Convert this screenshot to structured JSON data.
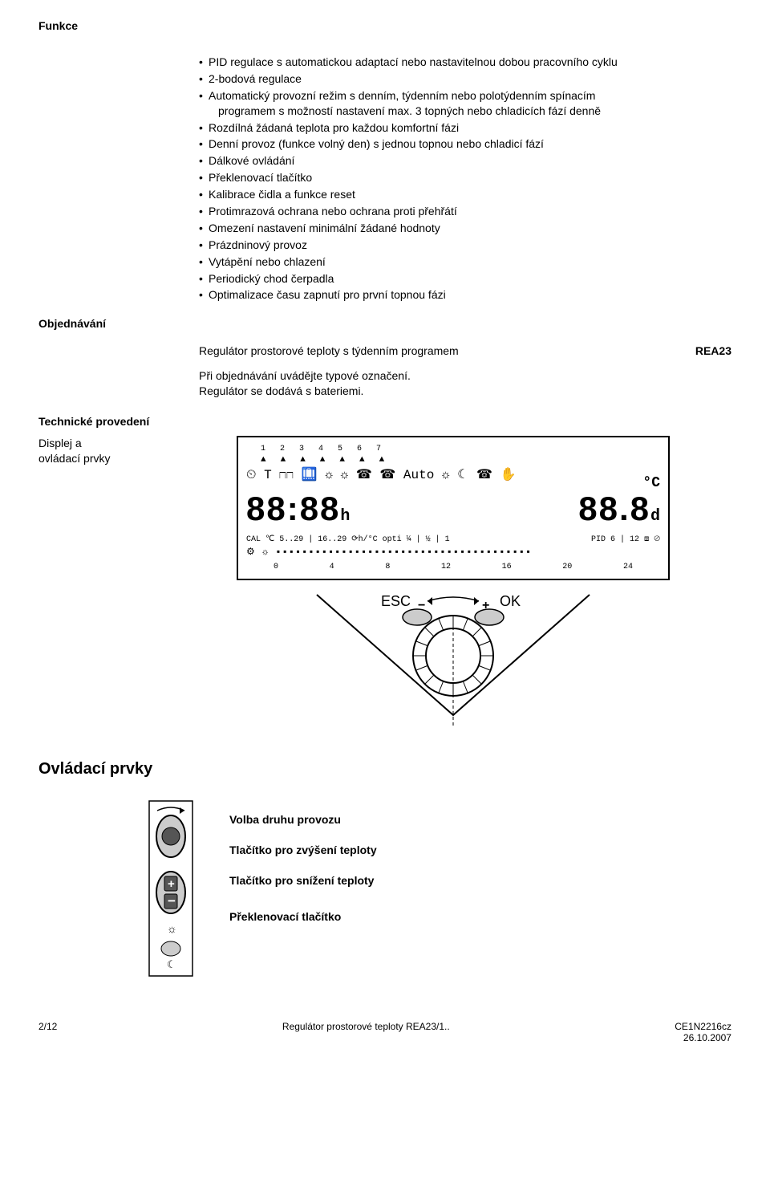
{
  "headings": {
    "funkce": "Funkce",
    "objednavani": "Objednávání",
    "technicke": "Technické provedení",
    "displej": "Displej a\novládací prvky",
    "ovladaci_prvky": "Ovládací prvky"
  },
  "bullets": [
    "PID regulace s automatickou adaptací nebo nastavitelnou dobou pracovního cyklu",
    "2-bodová regulace",
    "Automatický provozní režim s denním, týdenním nebo polotýdenním spínacím\nprogramem s možností nastavení max. 3 topných nebo chladicích fází denně",
    "Rozdílná žádaná teplota pro každou komfortní fázi",
    "Denní provoz (funkce volný den) s jednou topnou nebo chladicí fází",
    "Dálkové ovládání",
    "Překlenovací tlačítko",
    "Kalibrace čidla a funkce reset",
    "Protimrazová ochrana nebo ochrana proti přehřátí",
    "Omezení nastavení minimální žádané hodnoty",
    "Prázdninový provoz",
    "Vytápění nebo chlazení",
    "Periodický chod čerpadla",
    "Optimalizace času zapnutí pro první topnou fázi"
  ],
  "order": {
    "name": "Regulátor prostorové teploty s týdenním programem",
    "code": "REA23",
    "note_line1": "Při objednávání uvádějte typové označení.",
    "note_line2": "Regulátor se dodává s bateriemi."
  },
  "lcd": {
    "numbers": "1234567",
    "triangles": "▲▲▲▲▲▲▲",
    "icons_row": "⏲ T ⊓⊓ 🛄 ☼ ☼ ☎ ☎  Auto ☼ ☾ ☎ ✋",
    "big_left": "88:88",
    "big_left_sub": "h",
    "big_right": "88.8",
    "big_right_sup": "°C",
    "big_right_sub": "d",
    "small_left": "CAL ℃ 5..29 | 16..29 ⟳h/°C opti ¼ | ½ | 1",
    "small_right": "PID 6 | 12 ⧈ ⊘",
    "bar": "⚙ ☼   ▪▪▪▪▪▪▪▪▪▪▪▪▪▪▪▪▪▪▪▪▪▪▪▪▪▪▪▪▪▪▪▪▪▪▪▪▪▪▪",
    "hours": [
      "0",
      "4",
      "8",
      "12",
      "16",
      "20",
      "24"
    ],
    "right_glyphs_top": "☼",
    "right_glyphs_bottom": "☾"
  },
  "dial": {
    "esc": "ESC",
    "ok": "OK",
    "minus": "−",
    "plus": "+",
    "colors": {
      "stroke": "#000000",
      "fill_light": "#ffffff",
      "fill_grey": "#cccccc",
      "fill_dark": "#555555"
    }
  },
  "controls": {
    "label1": "Volba druhu provozu",
    "label2": "Tlačítko pro zvýšení teploty",
    "label3": "Tlačítko pro snížení teploty",
    "label4": "Překlenovací tlačítko",
    "plus": "+",
    "minus": "−"
  },
  "footer": {
    "left": "2/12",
    "center": "Regulátor prostorové teploty REA23/1..",
    "right_line1": "CE1N2216cz",
    "right_line2": "26.10.2007"
  }
}
